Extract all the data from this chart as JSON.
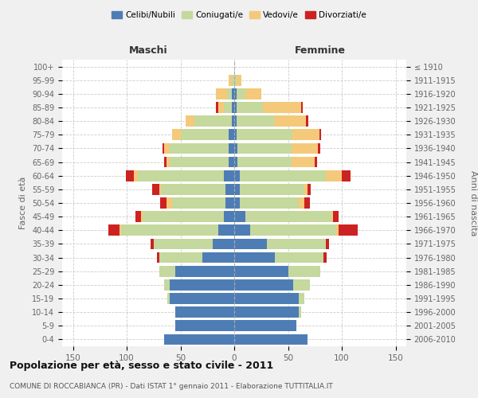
{
  "age_groups": [
    "0-4",
    "5-9",
    "10-14",
    "15-19",
    "20-24",
    "25-29",
    "30-34",
    "35-39",
    "40-44",
    "45-49",
    "50-54",
    "55-59",
    "60-64",
    "65-69",
    "70-74",
    "75-79",
    "80-84",
    "85-89",
    "90-94",
    "95-99",
    "100+"
  ],
  "birth_years": [
    "2006-2010",
    "2001-2005",
    "1996-2000",
    "1991-1995",
    "1986-1990",
    "1981-1985",
    "1976-1980",
    "1971-1975",
    "1966-1970",
    "1961-1965",
    "1956-1960",
    "1951-1955",
    "1946-1950",
    "1941-1945",
    "1936-1940",
    "1931-1935",
    "1926-1930",
    "1921-1925",
    "1916-1920",
    "1911-1915",
    "≤ 1910"
  ],
  "males": {
    "celibi": [
      65,
      55,
      55,
      60,
      60,
      55,
      30,
      20,
      15,
      10,
      8,
      8,
      10,
      5,
      5,
      5,
      2,
      2,
      2,
      0,
      0
    ],
    "coniugati": [
      0,
      0,
      0,
      2,
      5,
      15,
      40,
      55,
      90,
      75,
      50,
      60,
      80,
      55,
      55,
      45,
      35,
      8,
      5,
      2,
      0
    ],
    "vedovi": [
      0,
      0,
      0,
      0,
      0,
      0,
      0,
      0,
      2,
      2,
      5,
      2,
      3,
      3,
      5,
      8,
      8,
      5,
      10,
      3,
      0
    ],
    "divorziati": [
      0,
      0,
      0,
      0,
      0,
      0,
      2,
      3,
      10,
      5,
      6,
      6,
      8,
      2,
      2,
      0,
      0,
      2,
      0,
      0,
      0
    ]
  },
  "females": {
    "nubili": [
      68,
      58,
      60,
      60,
      55,
      50,
      38,
      30,
      15,
      10,
      5,
      5,
      5,
      3,
      3,
      2,
      2,
      2,
      2,
      0,
      0
    ],
    "coniugate": [
      0,
      0,
      2,
      5,
      15,
      30,
      45,
      55,
      80,
      80,
      55,
      60,
      80,
      50,
      50,
      52,
      35,
      25,
      8,
      2,
      0
    ],
    "vedove": [
      0,
      0,
      0,
      0,
      0,
      0,
      0,
      0,
      2,
      2,
      5,
      3,
      15,
      22,
      25,
      25,
      30,
      35,
      15,
      5,
      0
    ],
    "divorziate": [
      0,
      0,
      0,
      0,
      0,
      0,
      3,
      3,
      18,
      5,
      5,
      3,
      8,
      2,
      2,
      2,
      2,
      2,
      0,
      0,
      0
    ]
  },
  "colors": {
    "celibi": "#4e7db5",
    "coniugati": "#c5d89d",
    "vedovi": "#f5c97a",
    "divorziati": "#cc2222"
  },
  "title": "Popolazione per età, sesso e stato civile - 2011",
  "subtitle": "COMUNE DI ROCCABIANCA (PR) - Dati ISTAT 1° gennaio 2011 - Elaborazione TUTTITALIA.IT",
  "xlabel_left": "Maschi",
  "xlabel_right": "Femmine",
  "ylabel_left": "Fasce di età",
  "ylabel_right": "Anni di nascita",
  "xlim": 160,
  "bg_color": "#f0f0f0",
  "plot_bg": "#ffffff",
  "legend_labels": [
    "Celibi/Nubili",
    "Coniugati/e",
    "Vedovi/e",
    "Divorziati/e"
  ]
}
